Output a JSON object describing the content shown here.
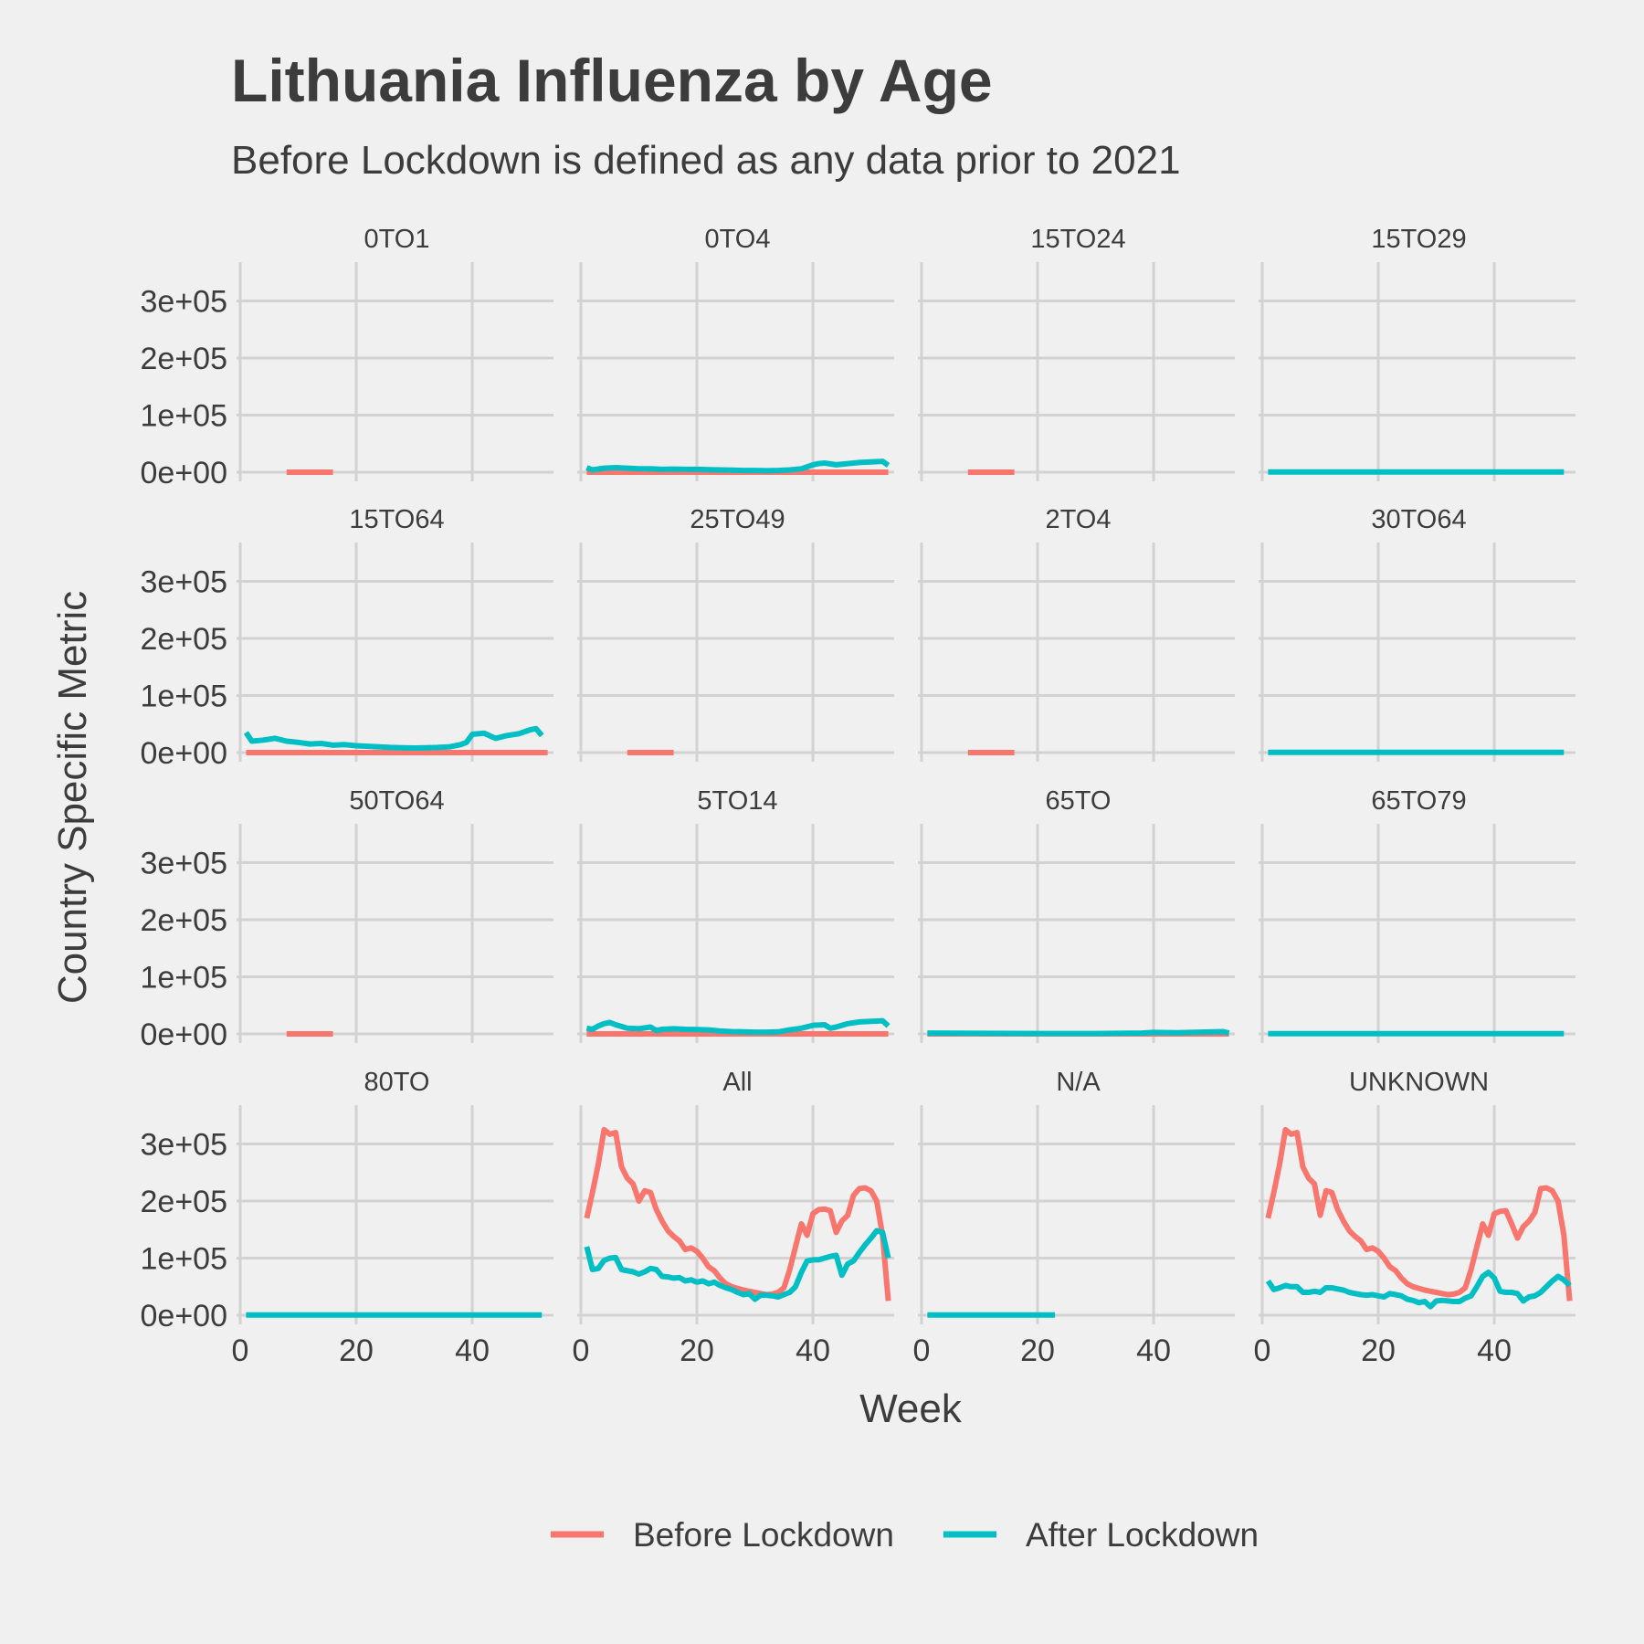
{
  "chart_data": {
    "type": "line",
    "title": "Lithuania Influenza by Age",
    "subtitle": "Before Lockdown is defined as any data prior to 2021",
    "xlabel": "Week",
    "ylabel": "Country Specific Metric",
    "xlim": [
      0,
      54
    ],
    "ylim": [
      0,
      330000
    ],
    "x_ticks": [
      0,
      20,
      40
    ],
    "x_tick_labels": [
      "0",
      "20",
      "40"
    ],
    "y_ticks": [
      0,
      100000,
      200000,
      300000
    ],
    "y_tick_labels": [
      "0e+00",
      "1e+05",
      "2e+05",
      "3e+05"
    ],
    "grid": true,
    "legend_position": "bottom",
    "legend": [
      {
        "name": "Before Lockdown",
        "color": "#F8766D"
      },
      {
        "name": "After Lockdown",
        "color": "#00BFC4"
      }
    ],
    "facets": [
      {
        "label": "0TO1",
        "series": [
          {
            "name": "Before Lockdown",
            "x": [
              8,
              16
            ],
            "y": [
              0,
              0
            ]
          }
        ]
      },
      {
        "label": "0TO4",
        "series": [
          {
            "name": "Before Lockdown",
            "x": [
              1,
              53
            ],
            "y": [
              0,
              0
            ]
          },
          {
            "name": "After Lockdown",
            "x": [
              1,
              2,
              4,
              6,
              8,
              10,
              12,
              14,
              16,
              18,
              20,
              22,
              24,
              26,
              28,
              30,
              32,
              34,
              36,
              38,
              40,
              41,
              42,
              44,
              46,
              48,
              50,
              52,
              53
            ],
            "y": [
              8000,
              4000,
              7000,
              8000,
              7000,
              6000,
              6000,
              5000,
              5500,
              5000,
              5000,
              4500,
              4000,
              3500,
              3000,
              3000,
              2500,
              3000,
              4000,
              6000,
              13000,
              15000,
              16000,
              13000,
              15000,
              17000,
              18000,
              19000,
              12000
            ]
          }
        ]
      },
      {
        "label": "15TO24",
        "series": [
          {
            "name": "Before Lockdown",
            "x": [
              8,
              16
            ],
            "y": [
              0,
              0
            ]
          }
        ]
      },
      {
        "label": "15TO29",
        "series": [
          {
            "name": "After Lockdown",
            "x": [
              1,
              52
            ],
            "y": [
              500,
              500
            ]
          }
        ]
      },
      {
        "label": "15TO64",
        "series": [
          {
            "name": "Before Lockdown",
            "x": [
              1,
              53
            ],
            "y": [
              0,
              0
            ]
          },
          {
            "name": "After Lockdown",
            "x": [
              1,
              2,
              4,
              6,
              8,
              10,
              12,
              14,
              16,
              18,
              20,
              22,
              24,
              26,
              28,
              30,
              32,
              34,
              36,
              38,
              39,
              40,
              41,
              42,
              44,
              46,
              48,
              50,
              51,
              52
            ],
            "y": [
              35000,
              20000,
              22000,
              25000,
              20000,
              18000,
              15000,
              16000,
              13000,
              14000,
              12000,
              11000,
              10000,
              9000,
              8500,
              8000,
              8500,
              9000,
              10000,
              14000,
              18000,
              32000,
              33000,
              34000,
              25000,
              30000,
              33000,
              40000,
              42000,
              30000
            ]
          }
        ]
      },
      {
        "label": "25TO49",
        "series": [
          {
            "name": "Before Lockdown",
            "x": [
              8,
              16
            ],
            "y": [
              0,
              0
            ]
          }
        ]
      },
      {
        "label": "2TO4",
        "series": [
          {
            "name": "Before Lockdown",
            "x": [
              8,
              16
            ],
            "y": [
              0,
              0
            ]
          }
        ]
      },
      {
        "label": "30TO64",
        "series": [
          {
            "name": "After Lockdown",
            "x": [
              1,
              52
            ],
            "y": [
              500,
              500
            ]
          }
        ]
      },
      {
        "label": "50TO64",
        "series": [
          {
            "name": "Before Lockdown",
            "x": [
              8,
              16
            ],
            "y": [
              0,
              0
            ]
          }
        ]
      },
      {
        "label": "5TO14",
        "series": [
          {
            "name": "Before Lockdown",
            "x": [
              1,
              53
            ],
            "y": [
              0,
              0
            ]
          },
          {
            "name": "After Lockdown",
            "x": [
              1,
              2,
              3,
              4,
              5,
              6,
              8,
              10,
              12,
              13,
              14,
              16,
              18,
              20,
              22,
              24,
              26,
              28,
              30,
              32,
              34,
              36,
              38,
              40,
              42,
              43,
              44,
              46,
              48,
              50,
              52,
              53
            ],
            "y": [
              10000,
              8000,
              14000,
              18000,
              20000,
              16000,
              10000,
              9000,
              12000,
              6000,
              8000,
              9000,
              8000,
              7500,
              7000,
              5000,
              4000,
              3500,
              3000,
              3000,
              3500,
              7000,
              10000,
              15000,
              16000,
              10000,
              12000,
              18000,
              21000,
              22000,
              23000,
              14000
            ]
          }
        ]
      },
      {
        "label": "65TO",
        "series": [
          {
            "name": "Before Lockdown",
            "x": [
              1,
              53
            ],
            "y": [
              0,
              0
            ]
          },
          {
            "name": "After Lockdown",
            "x": [
              1,
              10,
              20,
              30,
              38,
              40,
              44,
              48,
              52,
              53
            ],
            "y": [
              1500,
              1000,
              700,
              600,
              1500,
              2500,
              2000,
              3000,
              4000,
              1500
            ]
          }
        ]
      },
      {
        "label": "65TO79",
        "series": [
          {
            "name": "After Lockdown",
            "x": [
              1,
              52
            ],
            "y": [
              500,
              500
            ]
          }
        ]
      },
      {
        "label": "80TO",
        "series": [
          {
            "name": "After Lockdown",
            "x": [
              1,
              52
            ],
            "y": [
              500,
              500
            ]
          }
        ]
      },
      {
        "label": "All",
        "series": [
          {
            "name": "Before Lockdown",
            "x": [
              1,
              2,
              3,
              4,
              5,
              6,
              7,
              8,
              9,
              10,
              11,
              12,
              13,
              14,
              15,
              16,
              17,
              18,
              19,
              20,
              21,
              22,
              23,
              24,
              25,
              26,
              27,
              28,
              29,
              30,
              31,
              32,
              33,
              34,
              35,
              36,
              37,
              38,
              39,
              40,
              41,
              42,
              43,
              44,
              45,
              46,
              47,
              48,
              49,
              50,
              51,
              52,
              53
            ],
            "y": [
              170000,
              215000,
              265000,
              325000,
              317000,
              320000,
              260000,
              240000,
              230000,
              200000,
              218000,
              215000,
              185000,
              165000,
              148000,
              138000,
              130000,
              115000,
              118000,
              112000,
              100000,
              85000,
              78000,
              65000,
              55000,
              50000,
              47000,
              44000,
              42000,
              40000,
              38000,
              36000,
              37000,
              40000,
              48000,
              80000,
              120000,
              160000,
              140000,
              178000,
              185000,
              186000,
              183000,
              145000,
              165000,
              175000,
              210000,
              222000,
              223000,
              218000,
              200000,
              140000,
              25000
            ]
          },
          {
            "name": "After Lockdown",
            "x": [
              1,
              2,
              3,
              4,
              5,
              6,
              7,
              8,
              9,
              10,
              11,
              12,
              13,
              14,
              15,
              16,
              17,
              18,
              19,
              20,
              21,
              22,
              23,
              24,
              25,
              26,
              27,
              28,
              29,
              30,
              31,
              32,
              33,
              34,
              35,
              36,
              37,
              38,
              39,
              40,
              41,
              42,
              43,
              44,
              45,
              46,
              47,
              48,
              49,
              50,
              51,
              52,
              53
            ],
            "y": [
              120000,
              80000,
              82000,
              96000,
              100000,
              101000,
              80000,
              78000,
              76000,
              72000,
              76000,
              82000,
              80000,
              68000,
              67000,
              65000,
              66000,
              60000,
              62000,
              58000,
              60000,
              55000,
              58000,
              52000,
              48000,
              45000,
              40000,
              36000,
              38000,
              28000,
              35000,
              35000,
              34000,
              32000,
              36000,
              40000,
              50000,
              75000,
              95000,
              97000,
              97000,
              100000,
              103000,
              105000,
              70000,
              90000,
              95000,
              110000,
              123000,
              135000,
              148000,
              145000,
              100000
            ]
          }
        ]
      },
      {
        "label": "N/A",
        "series": [
          {
            "name": "After Lockdown",
            "x": [
              1,
              23
            ],
            "y": [
              500,
              500
            ]
          }
        ]
      },
      {
        "label": "UNKNOWN",
        "series": [
          {
            "name": "Before Lockdown",
            "x": [
              1,
              2,
              3,
              4,
              5,
              6,
              7,
              8,
              9,
              10,
              11,
              12,
              13,
              14,
              15,
              16,
              17,
              18,
              19,
              20,
              21,
              22,
              23,
              24,
              25,
              26,
              27,
              28,
              29,
              30,
              31,
              32,
              33,
              34,
              35,
              36,
              37,
              38,
              39,
              40,
              41,
              42,
              43,
              44,
              45,
              46,
              47,
              48,
              49,
              50,
              51,
              52,
              53
            ],
            "y": [
              170000,
              215000,
              265000,
              325000,
              317000,
              320000,
              260000,
              240000,
              230000,
              175000,
              218000,
              215000,
              185000,
              165000,
              148000,
              138000,
              130000,
              115000,
              118000,
              112000,
              100000,
              85000,
              78000,
              65000,
              55000,
              50000,
              47000,
              44000,
              42000,
              40000,
              38000,
              36000,
              37000,
              40000,
              48000,
              80000,
              120000,
              160000,
              140000,
              178000,
              182000,
              183000,
              160000,
              135000,
              155000,
              165000,
              180000,
              222000,
              223000,
              218000,
              200000,
              140000,
              25000
            ]
          },
          {
            "name": "After Lockdown",
            "x": [
              1,
              2,
              3,
              4,
              5,
              6,
              7,
              8,
              9,
              10,
              11,
              12,
              13,
              14,
              15,
              16,
              17,
              18,
              19,
              20,
              21,
              22,
              23,
              24,
              25,
              26,
              27,
              28,
              29,
              30,
              31,
              32,
              33,
              34,
              35,
              36,
              37,
              38,
              39,
              40,
              41,
              42,
              43,
              44,
              45,
              46,
              47,
              48,
              49,
              50,
              51,
              52,
              53
            ],
            "y": [
              60000,
              45000,
              48000,
              52000,
              50000,
              50000,
              40000,
              40000,
              42000,
              40000,
              48000,
              48000,
              46000,
              44000,
              40000,
              38000,
              36000,
              35000,
              36000,
              34000,
              32000,
              38000,
              36000,
              34000,
              28000,
              26000,
              22000,
              24000,
              15000,
              25000,
              26000,
              25000,
              24000,
              24000,
              30000,
              34000,
              50000,
              68000,
              75000,
              65000,
              42000,
              40000,
              40000,
              38000,
              25000,
              32000,
              34000,
              40000,
              50000,
              60000,
              68000,
              62000,
              52000
            ]
          }
        ]
      }
    ]
  }
}
